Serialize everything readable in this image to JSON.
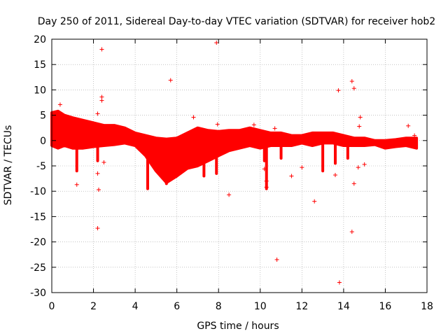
{
  "chart_data": {
    "type": "scatter",
    "title": "Day 250 of 2011, Sidereal Day-to-day VTEC variation (SDTVAR) for receiver hob2",
    "xlabel": "GPS time / hours",
    "ylabel": "SDTVAR / TECUs",
    "xlim": [
      0,
      18
    ],
    "ylim": [
      -30,
      20
    ],
    "xticks": [
      0,
      2,
      4,
      6,
      8,
      10,
      12,
      14,
      16,
      18
    ],
    "yticks": [
      -30,
      -25,
      -20,
      -15,
      -10,
      -5,
      0,
      5,
      10,
      15,
      20
    ],
    "grid": true,
    "marker": "+",
    "color": "#ff0000",
    "band": [
      [
        0.0,
        -1.0,
        5.5
      ],
      [
        0.3,
        -1.5,
        5.8
      ],
      [
        0.6,
        -1.0,
        5.0
      ],
      [
        1.0,
        -1.5,
        4.5
      ],
      [
        1.5,
        -1.5,
        4.0
      ],
      [
        2.0,
        -1.2,
        3.5
      ],
      [
        2.5,
        -1.0,
        3.0
      ],
      [
        3.0,
        -0.8,
        3.0
      ],
      [
        3.5,
        -0.5,
        2.5
      ],
      [
        4.0,
        -1.0,
        1.5
      ],
      [
        4.5,
        -3.0,
        1.0
      ],
      [
        5.0,
        -6.0,
        0.5
      ],
      [
        5.5,
        -8.3,
        0.3
      ],
      [
        6.0,
        -7.0,
        0.5
      ],
      [
        6.5,
        -5.5,
        1.5
      ],
      [
        7.0,
        -5.0,
        2.5
      ],
      [
        7.5,
        -4.0,
        2.0
      ],
      [
        8.0,
        -3.0,
        1.8
      ],
      [
        8.5,
        -2.0,
        2.0
      ],
      [
        9.0,
        -1.5,
        2.0
      ],
      [
        9.5,
        -1.0,
        2.5
      ],
      [
        10.0,
        -1.5,
        2.0
      ],
      [
        10.5,
        -1.0,
        1.5
      ],
      [
        11.0,
        -1.0,
        1.5
      ],
      [
        11.5,
        -1.0,
        1.0
      ],
      [
        12.0,
        -0.5,
        1.0
      ],
      [
        12.5,
        -1.0,
        1.5
      ],
      [
        13.0,
        -0.5,
        1.5
      ],
      [
        13.5,
        -0.5,
        1.5
      ],
      [
        14.0,
        -1.0,
        1.0
      ],
      [
        14.5,
        -1.0,
        0.5
      ],
      [
        15.0,
        -1.0,
        0.5
      ],
      [
        15.5,
        -0.8,
        0.0
      ],
      [
        16.0,
        -1.5,
        0.0
      ],
      [
        16.5,
        -1.2,
        0.2
      ],
      [
        17.0,
        -1.0,
        0.5
      ],
      [
        17.5,
        -1.5,
        0.5
      ]
    ],
    "spikes": [
      [
        1.2,
        -6.0
      ],
      [
        2.2,
        -4.0
      ],
      [
        4.6,
        -9.5
      ],
      [
        5.5,
        -8.5
      ],
      [
        7.3,
        -7.0
      ],
      [
        7.9,
        -6.5
      ],
      [
        10.2,
        -4.0
      ],
      [
        10.3,
        -9.5
      ],
      [
        11.0,
        -3.5
      ],
      [
        13.0,
        -6.0
      ],
      [
        13.6,
        -4.5
      ],
      [
        14.2,
        -3.5
      ]
    ],
    "points": [
      [
        0.4,
        7.1
      ],
      [
        1.2,
        -8.7
      ],
      [
        2.2,
        5.3
      ],
      [
        2.2,
        -6.5
      ],
      [
        2.25,
        -9.7
      ],
      [
        2.2,
        -17.3
      ],
      [
        2.4,
        18.0
      ],
      [
        2.4,
        8.6
      ],
      [
        2.4,
        7.9
      ],
      [
        2.5,
        -4.3
      ],
      [
        5.7,
        11.9
      ],
      [
        6.8,
        4.6
      ],
      [
        7.9,
        19.3
      ],
      [
        7.95,
        3.2
      ],
      [
        8.5,
        -10.7
      ],
      [
        9.7,
        3.1
      ],
      [
        10.2,
        -5.6
      ],
      [
        10.3,
        -8.0
      ],
      [
        10.3,
        -9.2
      ],
      [
        10.7,
        2.4
      ],
      [
        10.8,
        -23.5
      ],
      [
        11.5,
        -7.0
      ],
      [
        12.0,
        -5.3
      ],
      [
        12.6,
        -12.0
      ],
      [
        13.6,
        -6.8
      ],
      [
        13.75,
        9.9
      ],
      [
        13.8,
        -28.0
      ],
      [
        14.4,
        11.7
      ],
      [
        14.4,
        -18.0
      ],
      [
        14.5,
        10.3
      ],
      [
        14.5,
        -8.5
      ],
      [
        14.7,
        -5.3
      ],
      [
        14.8,
        4.6
      ],
      [
        14.75,
        2.8
      ],
      [
        15.0,
        -4.7
      ],
      [
        17.1,
        2.9
      ],
      [
        17.4,
        1.0
      ],
      [
        14.1,
        0.5
      ],
      [
        6.3,
        0.8
      ]
    ]
  }
}
